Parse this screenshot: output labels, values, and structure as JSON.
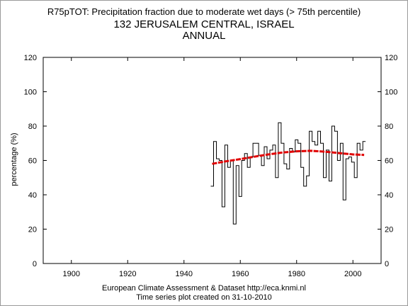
{
  "chart_data": {
    "type": "line",
    "title": "R75pTOT: Precipitation fraction due to moderate wet days (> 75th percentile)",
    "subtitle": "132 JERUSALEM CENTRAL, ISRAEL",
    "subtitle2": "ANNUAL",
    "ylabel": "percentage (%)",
    "xlabel": "",
    "xlim": [
      1890,
      2010
    ],
    "ylim": [
      0,
      120
    ],
    "x_ticks": [
      1900,
      1920,
      1940,
      1960,
      1980,
      2000
    ],
    "y_ticks": [
      0,
      20,
      40,
      60,
      80,
      100,
      120
    ],
    "grid": false,
    "series": [
      {
        "style": "step",
        "color": "#000000",
        "x": [
          1950,
          1951,
          1952,
          1953,
          1954,
          1955,
          1956,
          1957,
          1958,
          1959,
          1960,
          1961,
          1962,
          1963,
          1964,
          1965,
          1966,
          1967,
          1968,
          1969,
          1970,
          1971,
          1972,
          1973,
          1974,
          1975,
          1976,
          1977,
          1978,
          1979,
          1980,
          1981,
          1982,
          1983,
          1984,
          1985,
          1986,
          1987,
          1988,
          1989,
          1990,
          1991,
          1992,
          1993,
          1994,
          1995,
          1996,
          1997,
          1998,
          1999,
          2000,
          2001,
          2002,
          2003,
          2004
        ],
        "y": [
          45,
          71,
          61,
          60,
          33,
          69,
          56,
          60,
          23,
          57,
          39,
          60,
          64,
          56,
          62,
          70,
          70,
          63,
          57,
          68,
          61,
          66,
          69,
          50,
          82,
          70,
          58,
          55,
          67,
          65,
          72,
          70,
          56,
          45,
          51,
          77,
          71,
          69,
          77,
          70,
          50,
          66,
          48,
          80,
          77,
          60,
          70,
          37,
          61,
          62,
          59,
          50,
          70,
          66,
          71
        ]
      },
      {
        "style": "smooth",
        "color": "#e00000",
        "x": [
          1950,
          1955,
          1960,
          1965,
          1970,
          1975,
          1980,
          1985,
          1990,
          1995,
          2000,
          2004
        ],
        "y": [
          58,
          59.5,
          60.8,
          62.2,
          63.5,
          64.6,
          65.3,
          65.6,
          65.1,
          64.3,
          63.5,
          63.2
        ]
      }
    ]
  },
  "footer": {
    "line1": "European Climate Assessment & Dataset  http://eca.knmi.nl",
    "line2": "Time series plot created on 31-10-2010"
  }
}
